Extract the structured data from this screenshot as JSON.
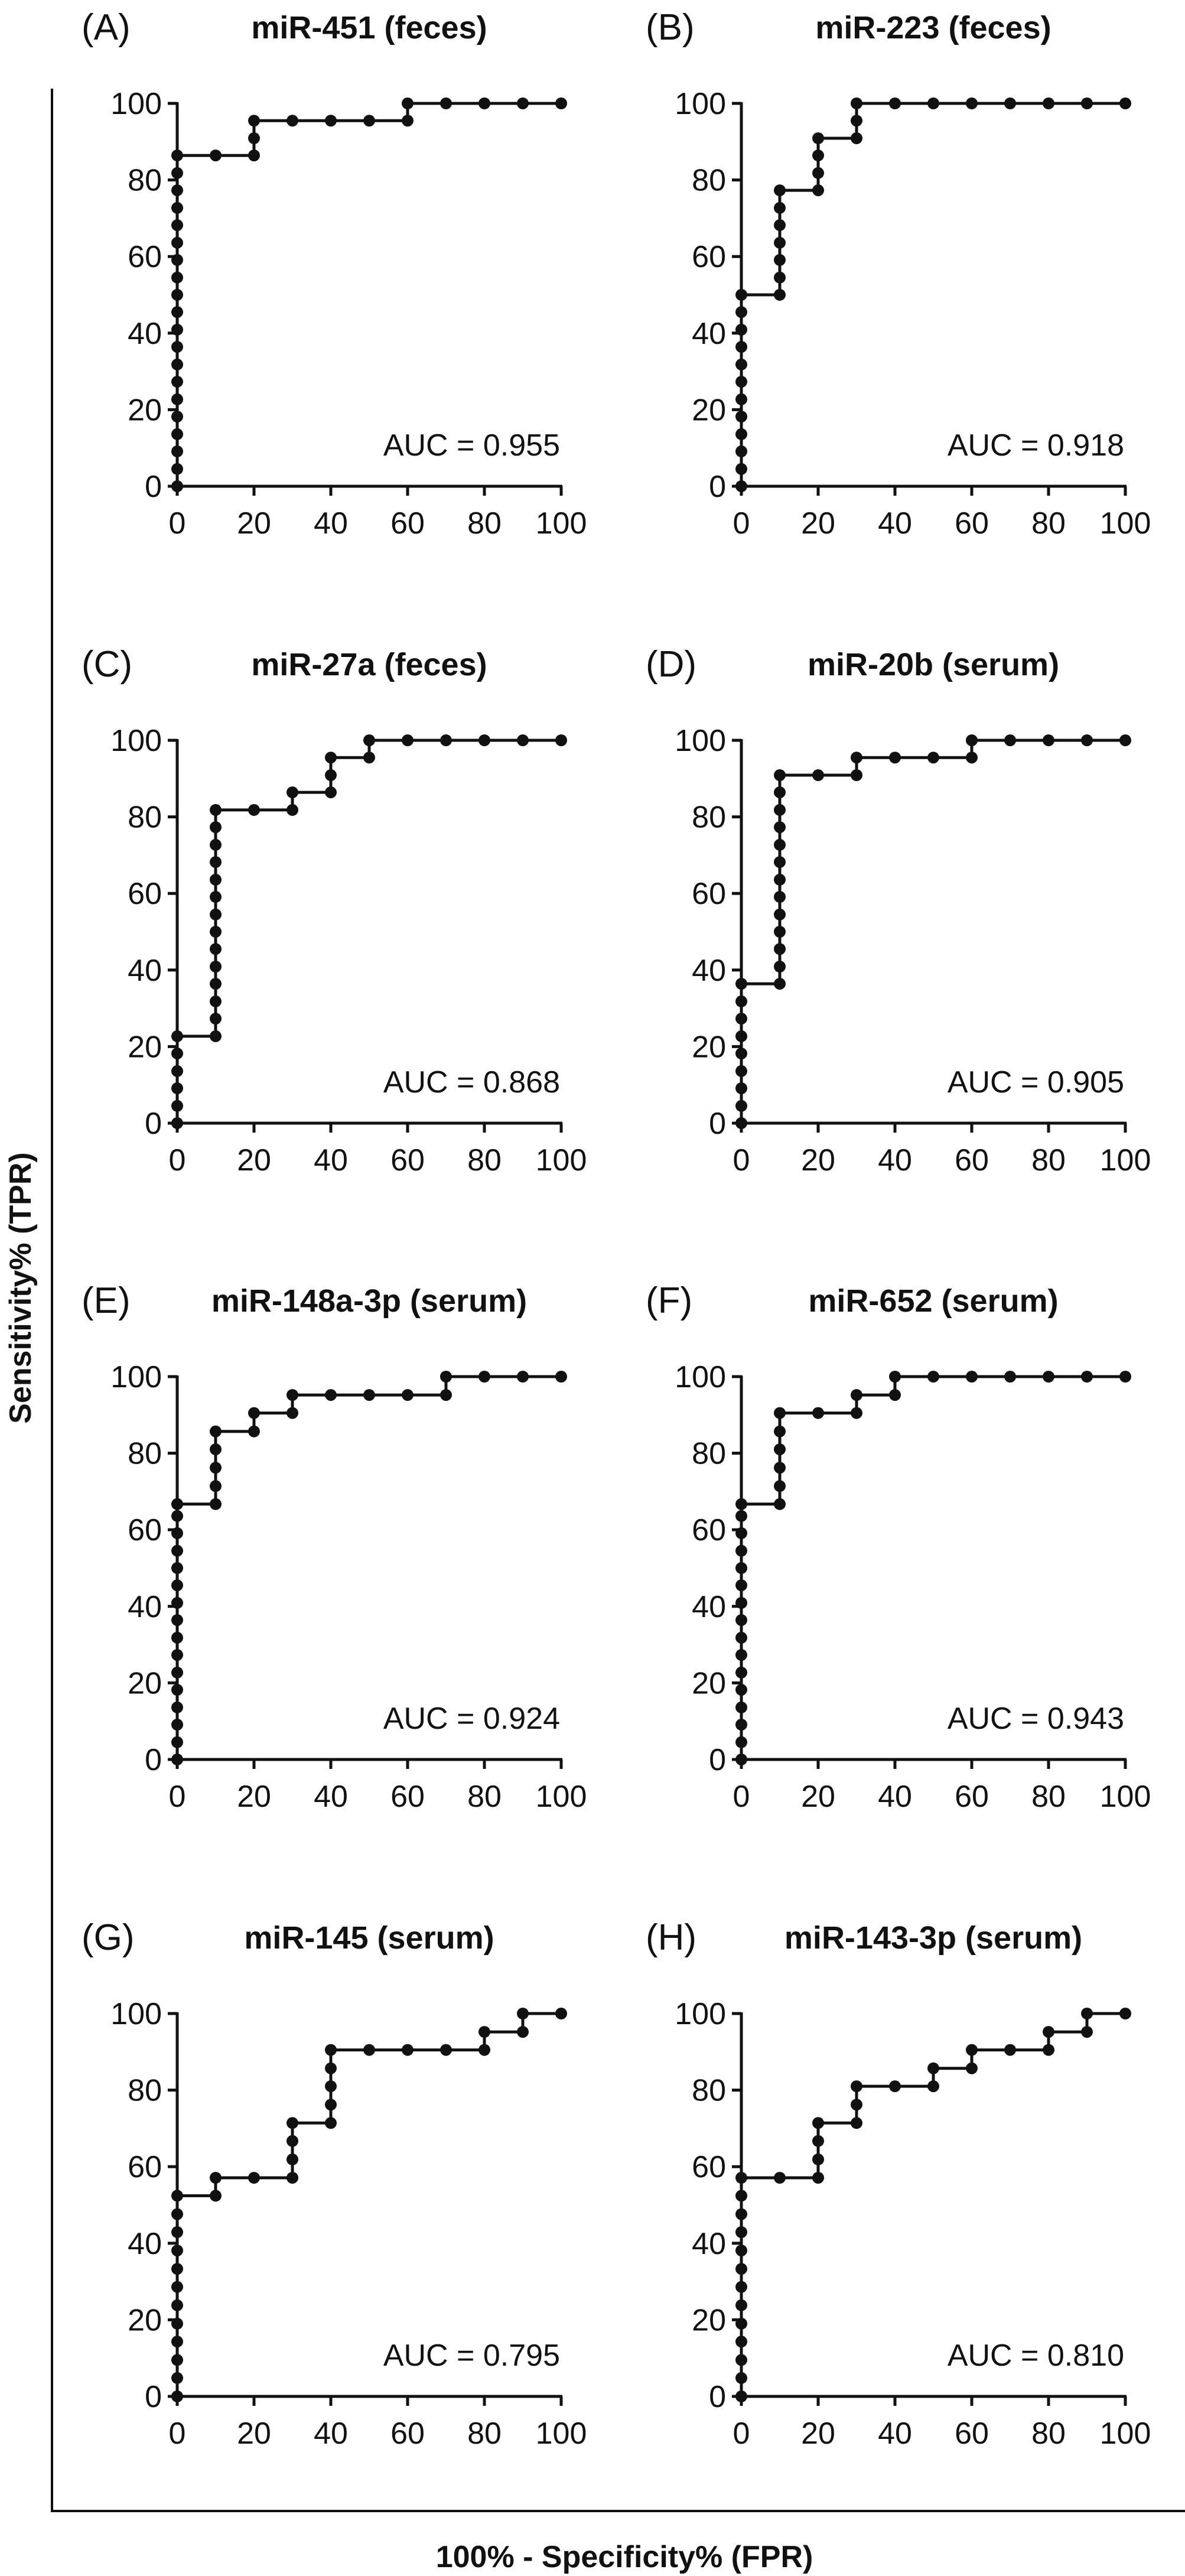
{
  "figure": {
    "ylabel": "Sensitivity% (TPR)",
    "xlabel": "100% - Specificity% (FPR)"
  },
  "style": {
    "line_color": "#111111",
    "marker_color": "#111111"
  },
  "chart_data": [
    {
      "type": "line",
      "letter": "(A)",
      "title": "miR-451 (feces)",
      "auc": "AUC = 0.955",
      "xlim": [
        0,
        100
      ],
      "ylim": [
        0,
        100
      ],
      "xticks": [
        0,
        20,
        40,
        60,
        80,
        100
      ],
      "yticks": [
        0,
        20,
        40,
        60,
        80,
        100
      ],
      "points": [
        [
          0,
          0
        ],
        [
          0,
          4.5
        ],
        [
          0,
          9.1
        ],
        [
          0,
          13.6
        ],
        [
          0,
          18.2
        ],
        [
          0,
          22.7
        ],
        [
          0,
          27.3
        ],
        [
          0,
          31.8
        ],
        [
          0,
          36.4
        ],
        [
          0,
          40.9
        ],
        [
          0,
          45.5
        ],
        [
          0,
          50
        ],
        [
          0,
          54.5
        ],
        [
          0,
          59.1
        ],
        [
          0,
          63.6
        ],
        [
          0,
          68.2
        ],
        [
          0,
          72.7
        ],
        [
          0,
          77.3
        ],
        [
          0,
          81.8
        ],
        [
          0,
          86.4
        ],
        [
          10,
          86.4
        ],
        [
          20,
          86.4
        ],
        [
          20,
          90.9
        ],
        [
          20,
          95.5
        ],
        [
          30,
          95.5
        ],
        [
          40,
          95.5
        ],
        [
          50,
          95.5
        ],
        [
          60,
          95.5
        ],
        [
          60,
          100
        ],
        [
          70,
          100
        ],
        [
          80,
          100
        ],
        [
          90,
          100
        ],
        [
          100,
          100
        ]
      ]
    },
    {
      "type": "line",
      "letter": "(B)",
      "title": "miR-223 (feces)",
      "auc": "AUC = 0.918",
      "xlim": [
        0,
        100
      ],
      "ylim": [
        0,
        100
      ],
      "xticks": [
        0,
        20,
        40,
        60,
        80,
        100
      ],
      "yticks": [
        0,
        20,
        40,
        60,
        80,
        100
      ],
      "points": [
        [
          0,
          0
        ],
        [
          0,
          4.5
        ],
        [
          0,
          9.1
        ],
        [
          0,
          13.6
        ],
        [
          0,
          18.2
        ],
        [
          0,
          22.7
        ],
        [
          0,
          27.3
        ],
        [
          0,
          31.8
        ],
        [
          0,
          36.4
        ],
        [
          0,
          40.9
        ],
        [
          0,
          45.5
        ],
        [
          0,
          50
        ],
        [
          10,
          50
        ],
        [
          10,
          54.5
        ],
        [
          10,
          59.1
        ],
        [
          10,
          63.6
        ],
        [
          10,
          68.2
        ],
        [
          10,
          72.7
        ],
        [
          10,
          77.3
        ],
        [
          20,
          77.3
        ],
        [
          20,
          81.8
        ],
        [
          20,
          86.4
        ],
        [
          20,
          90.9
        ],
        [
          30,
          90.9
        ],
        [
          30,
          95.5
        ],
        [
          30,
          100
        ],
        [
          40,
          100
        ],
        [
          50,
          100
        ],
        [
          60,
          100
        ],
        [
          70,
          100
        ],
        [
          80,
          100
        ],
        [
          90,
          100
        ],
        [
          100,
          100
        ]
      ]
    },
    {
      "type": "line",
      "letter": "(C)",
      "title": "miR-27a (feces)",
      "auc": "AUC = 0.868",
      "xlim": [
        0,
        100
      ],
      "ylim": [
        0,
        100
      ],
      "xticks": [
        0,
        20,
        40,
        60,
        80,
        100
      ],
      "yticks": [
        0,
        20,
        40,
        60,
        80,
        100
      ],
      "points": [
        [
          0,
          0
        ],
        [
          0,
          4.5
        ],
        [
          0,
          9.1
        ],
        [
          0,
          13.6
        ],
        [
          0,
          18.2
        ],
        [
          0,
          22.7
        ],
        [
          10,
          22.7
        ],
        [
          10,
          27.3
        ],
        [
          10,
          31.8
        ],
        [
          10,
          36.4
        ],
        [
          10,
          40.9
        ],
        [
          10,
          45.5
        ],
        [
          10,
          50
        ],
        [
          10,
          54.5
        ],
        [
          10,
          59.1
        ],
        [
          10,
          63.6
        ],
        [
          10,
          68.2
        ],
        [
          10,
          72.7
        ],
        [
          10,
          77.3
        ],
        [
          10,
          81.8
        ],
        [
          20,
          81.8
        ],
        [
          30,
          81.8
        ],
        [
          30,
          86.4
        ],
        [
          40,
          86.4
        ],
        [
          40,
          90.9
        ],
        [
          40,
          95.5
        ],
        [
          50,
          95.5
        ],
        [
          50,
          100
        ],
        [
          60,
          100
        ],
        [
          70,
          100
        ],
        [
          80,
          100
        ],
        [
          90,
          100
        ],
        [
          100,
          100
        ]
      ]
    },
    {
      "type": "line",
      "letter": "(D)",
      "title": "miR-20b (serum)",
      "auc": "AUC = 0.905",
      "xlim": [
        0,
        100
      ],
      "ylim": [
        0,
        100
      ],
      "xticks": [
        0,
        20,
        40,
        60,
        80,
        100
      ],
      "yticks": [
        0,
        20,
        40,
        60,
        80,
        100
      ],
      "points": [
        [
          0,
          0
        ],
        [
          0,
          4.5
        ],
        [
          0,
          9.1
        ],
        [
          0,
          13.6
        ],
        [
          0,
          18.2
        ],
        [
          0,
          22.7
        ],
        [
          0,
          27.3
        ],
        [
          0,
          31.8
        ],
        [
          0,
          36.4
        ],
        [
          10,
          36.4
        ],
        [
          10,
          40.9
        ],
        [
          10,
          45.5
        ],
        [
          10,
          50
        ],
        [
          10,
          54.5
        ],
        [
          10,
          59.1
        ],
        [
          10,
          63.6
        ],
        [
          10,
          68.2
        ],
        [
          10,
          72.7
        ],
        [
          10,
          77.3
        ],
        [
          10,
          81.8
        ],
        [
          10,
          86.4
        ],
        [
          10,
          90.9
        ],
        [
          20,
          90.9
        ],
        [
          30,
          90.9
        ],
        [
          30,
          95.5
        ],
        [
          40,
          95.5
        ],
        [
          50,
          95.5
        ],
        [
          60,
          95.5
        ],
        [
          60,
          100
        ],
        [
          70,
          100
        ],
        [
          80,
          100
        ],
        [
          90,
          100
        ],
        [
          100,
          100
        ]
      ]
    },
    {
      "type": "line",
      "letter": "(E)",
      "title": "miR-148a-3p (serum)",
      "auc": "AUC = 0.924",
      "xlim": [
        0,
        100
      ],
      "ylim": [
        0,
        100
      ],
      "xticks": [
        0,
        20,
        40,
        60,
        80,
        100
      ],
      "yticks": [
        0,
        20,
        40,
        60,
        80,
        100
      ],
      "points": [
        [
          0,
          0
        ],
        [
          0,
          4.5
        ],
        [
          0,
          9.1
        ],
        [
          0,
          13.6
        ],
        [
          0,
          18.2
        ],
        [
          0,
          22.7
        ],
        [
          0,
          27.3
        ],
        [
          0,
          31.8
        ],
        [
          0,
          36.4
        ],
        [
          0,
          40.9
        ],
        [
          0,
          45.5
        ],
        [
          0,
          50
        ],
        [
          0,
          54.5
        ],
        [
          0,
          59.1
        ],
        [
          0,
          63.6
        ],
        [
          0,
          66.7
        ],
        [
          10,
          66.7
        ],
        [
          10,
          71.4
        ],
        [
          10,
          76.2
        ],
        [
          10,
          81
        ],
        [
          10,
          85.7
        ],
        [
          20,
          85.7
        ],
        [
          20,
          90.5
        ],
        [
          30,
          90.5
        ],
        [
          30,
          95.2
        ],
        [
          40,
          95.2
        ],
        [
          50,
          95.2
        ],
        [
          60,
          95.2
        ],
        [
          70,
          95.2
        ],
        [
          70,
          100
        ],
        [
          80,
          100
        ],
        [
          90,
          100
        ],
        [
          100,
          100
        ]
      ]
    },
    {
      "type": "line",
      "letter": "(F)",
      "title": "miR-652 (serum)",
      "auc": "AUC = 0.943",
      "xlim": [
        0,
        100
      ],
      "ylim": [
        0,
        100
      ],
      "xticks": [
        0,
        20,
        40,
        60,
        80,
        100
      ],
      "yticks": [
        0,
        20,
        40,
        60,
        80,
        100
      ],
      "points": [
        [
          0,
          0
        ],
        [
          0,
          4.5
        ],
        [
          0,
          9.1
        ],
        [
          0,
          13.6
        ],
        [
          0,
          18.2
        ],
        [
          0,
          22.7
        ],
        [
          0,
          27.3
        ],
        [
          0,
          31.8
        ],
        [
          0,
          36.4
        ],
        [
          0,
          40.9
        ],
        [
          0,
          45.5
        ],
        [
          0,
          50
        ],
        [
          0,
          54.5
        ],
        [
          0,
          59.1
        ],
        [
          0,
          63.6
        ],
        [
          0,
          66.7
        ],
        [
          10,
          66.7
        ],
        [
          10,
          71.4
        ],
        [
          10,
          76.2
        ],
        [
          10,
          81
        ],
        [
          10,
          85.7
        ],
        [
          10,
          90.5
        ],
        [
          20,
          90.5
        ],
        [
          30,
          90.5
        ],
        [
          30,
          95.2
        ],
        [
          40,
          95.2
        ],
        [
          40,
          100
        ],
        [
          50,
          100
        ],
        [
          60,
          100
        ],
        [
          70,
          100
        ],
        [
          80,
          100
        ],
        [
          90,
          100
        ],
        [
          100,
          100
        ]
      ]
    },
    {
      "type": "line",
      "letter": "(G)",
      "title": "miR-145 (serum)",
      "auc": "AUC = 0.795",
      "xlim": [
        0,
        100
      ],
      "ylim": [
        0,
        100
      ],
      "xticks": [
        0,
        20,
        40,
        60,
        80,
        100
      ],
      "yticks": [
        0,
        20,
        40,
        60,
        80,
        100
      ],
      "points": [
        [
          0,
          0
        ],
        [
          0,
          4.8
        ],
        [
          0,
          9.5
        ],
        [
          0,
          14.3
        ],
        [
          0,
          19
        ],
        [
          0,
          23.8
        ],
        [
          0,
          28.6
        ],
        [
          0,
          33.3
        ],
        [
          0,
          38.1
        ],
        [
          0,
          42.9
        ],
        [
          0,
          47.6
        ],
        [
          0,
          52.4
        ],
        [
          10,
          52.4
        ],
        [
          10,
          57.1
        ],
        [
          20,
          57.1
        ],
        [
          30,
          57.1
        ],
        [
          30,
          61.9
        ],
        [
          30,
          66.7
        ],
        [
          30,
          71.4
        ],
        [
          40,
          71.4
        ],
        [
          40,
          76.2
        ],
        [
          40,
          81
        ],
        [
          40,
          85.7
        ],
        [
          40,
          90.5
        ],
        [
          50,
          90.5
        ],
        [
          60,
          90.5
        ],
        [
          70,
          90.5
        ],
        [
          80,
          90.5
        ],
        [
          80,
          95.2
        ],
        [
          90,
          95.2
        ],
        [
          90,
          100
        ],
        [
          100,
          100
        ]
      ]
    },
    {
      "type": "line",
      "letter": "(H)",
      "title": "miR-143-3p (serum)",
      "auc": "AUC = 0.810",
      "xlim": [
        0,
        100
      ],
      "ylim": [
        0,
        100
      ],
      "xticks": [
        0,
        20,
        40,
        60,
        80,
        100
      ],
      "yticks": [
        0,
        20,
        40,
        60,
        80,
        100
      ],
      "points": [
        [
          0,
          0
        ],
        [
          0,
          4.8
        ],
        [
          0,
          9.5
        ],
        [
          0,
          14.3
        ],
        [
          0,
          19
        ],
        [
          0,
          23.8
        ],
        [
          0,
          28.6
        ],
        [
          0,
          33.3
        ],
        [
          0,
          38.1
        ],
        [
          0,
          42.9
        ],
        [
          0,
          47.6
        ],
        [
          0,
          52.4
        ],
        [
          0,
          57.1
        ],
        [
          10,
          57.1
        ],
        [
          20,
          57.1
        ],
        [
          20,
          61.9
        ],
        [
          20,
          66.7
        ],
        [
          20,
          71.4
        ],
        [
          30,
          71.4
        ],
        [
          30,
          76.2
        ],
        [
          30,
          81
        ],
        [
          40,
          81
        ],
        [
          50,
          81
        ],
        [
          50,
          85.7
        ],
        [
          60,
          85.7
        ],
        [
          60,
          90.5
        ],
        [
          70,
          90.5
        ],
        [
          80,
          90.5
        ],
        [
          80,
          95.2
        ],
        [
          90,
          95.2
        ],
        [
          90,
          100
        ],
        [
          100,
          100
        ]
      ]
    }
  ]
}
